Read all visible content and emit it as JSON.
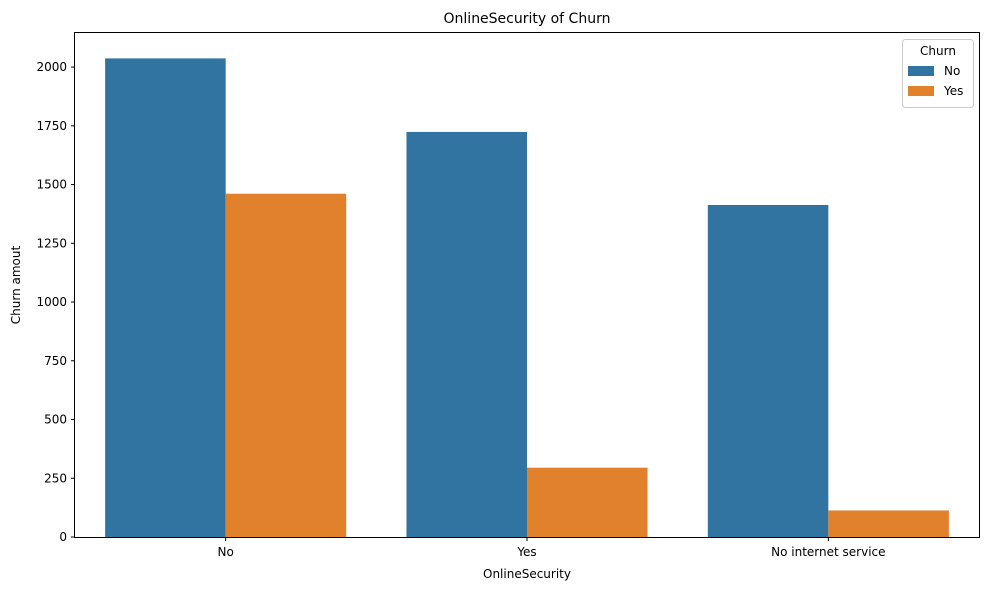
{
  "chart_data": {
    "type": "bar",
    "title": "OnlineSecurity of Churn",
    "xlabel": "OnlineSecurity",
    "ylabel": "Churn amout",
    "categories": [
      "No",
      "Yes",
      "No internet service"
    ],
    "series": [
      {
        "name": "No",
        "color": "#3274a1",
        "values": [
          2037,
          1724,
          1413
        ]
      },
      {
        "name": "Yes",
        "color": "#e1812c",
        "values": [
          1461,
          295,
          113
        ]
      }
    ],
    "ylim": [
      0,
      2145
    ],
    "yticks": [
      0,
      250,
      500,
      750,
      1000,
      1250,
      1500,
      1750,
      2000
    ],
    "grid": false,
    "legend": {
      "title": "Churn",
      "placement": "top-right"
    }
  }
}
